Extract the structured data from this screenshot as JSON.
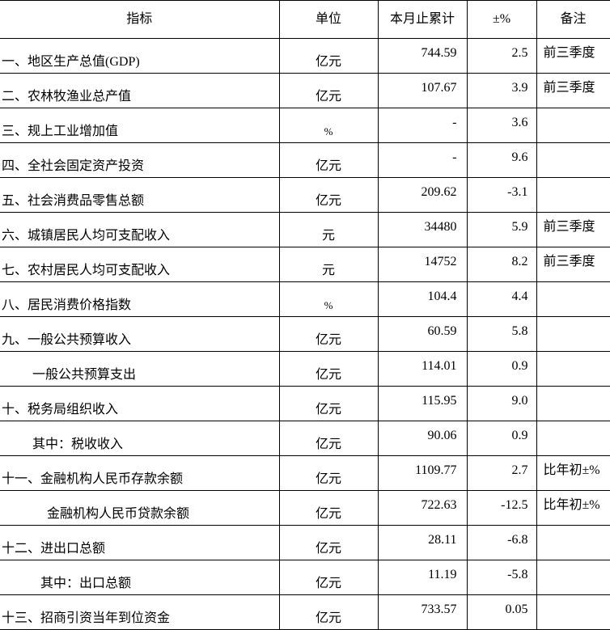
{
  "headers": [
    "指标",
    "单位",
    "本月止累计",
    "±%",
    "备注"
  ],
  "rows": [
    {
      "name": "一、地区生产总值(GDP)",
      "unit": "亿元",
      "value": "744.59",
      "pct": "2.5",
      "note": "前三季度",
      "indent": 0
    },
    {
      "name": "二、农林牧渔业总产值",
      "unit": "亿元",
      "value": "107.67",
      "pct": "3.9",
      "note": "前三季度",
      "indent": 0
    },
    {
      "name": "三、规上工业增加值",
      "unit": "%",
      "value": "-",
      "pct": "3.6",
      "note": "",
      "indent": 0
    },
    {
      "name": "四、全社会固定资产投资",
      "unit": "亿元",
      "value": "-",
      "pct": "9.6",
      "note": "",
      "indent": 0
    },
    {
      "name": "五、社会消费品零售总额",
      "unit": "亿元",
      "value": "209.62",
      "pct": "-3.1",
      "note": "",
      "indent": 0
    },
    {
      "name": "六、城镇居民人均可支配收入",
      "unit": "元",
      "value": "34480",
      "pct": "5.9",
      "note": "前三季度",
      "indent": 0
    },
    {
      "name": "七、农村居民人均可支配收入",
      "unit": "元",
      "value": "14752",
      "pct": "8.2",
      "note": "前三季度",
      "indent": 0
    },
    {
      "name": "八、居民消费价格指数",
      "unit": "%",
      "value": "104.4",
      "pct": "4.4",
      "note": "",
      "indent": 0
    },
    {
      "name": "九、一般公共预算收入",
      "unit": "亿元",
      "value": "60.59",
      "pct": "5.8",
      "note": "",
      "indent": 0
    },
    {
      "name": "一般公共预算支出",
      "unit": "亿元",
      "value": "114.01",
      "pct": "0.9",
      "note": "",
      "indent": 38
    },
    {
      "name": "十、税务局组织收入",
      "unit": "亿元",
      "value": "115.95",
      "pct": "9.0",
      "note": "",
      "indent": 0
    },
    {
      "name": "其中：税收收入",
      "unit": "亿元",
      "value": "90.06",
      "pct": "0.9",
      "note": "",
      "indent": 38
    },
    {
      "name": "十一、金融机构人民币存款余额",
      "unit": "亿元",
      "value": "1109.77",
      "pct": "2.7",
      "note": "比年初±%",
      "indent": 0
    },
    {
      "name": "金融机构人民币贷款余额",
      "unit": "亿元",
      "value": "722.63",
      "pct": "-12.5",
      "note": "比年初±%",
      "indent": 56
    },
    {
      "name": "十二、进出口总额",
      "unit": "亿元",
      "value": "28.11",
      "pct": "-6.8",
      "note": "",
      "indent": 0
    },
    {
      "name": "其中：出口总额",
      "unit": "亿元",
      "value": "11.19",
      "pct": "-5.8",
      "note": "",
      "indent": 48
    },
    {
      "name": "十三、招商引资当年到位资金",
      "unit": "亿元",
      "value": "733.57",
      "pct": "0.05",
      "note": "",
      "indent": 0
    }
  ]
}
